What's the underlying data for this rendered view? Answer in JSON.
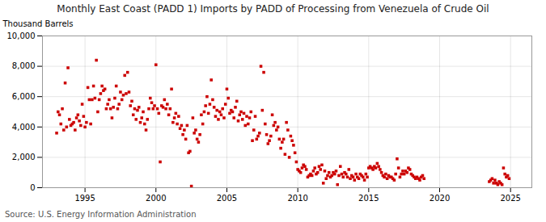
{
  "chart_data": {
    "type": "scatter",
    "title": "Monthly East Coast (PADD 1) Imports by PADD of Processing from Venezuela of Crude Oil",
    "ylabel": "Thousand Barrels",
    "source": "Source: U.S. Energy Information Administration",
    "color": "#cc0000",
    "marker": "square",
    "grid": true,
    "xlim": [
      1992.0,
      2026.5
    ],
    "xticks": [
      1995,
      2000,
      2005,
      2010,
      2015,
      2020,
      2025
    ],
    "ylim": [
      0,
      10000
    ],
    "yticks": [
      0,
      {
        "value": 2000,
        "label": "2,000"
      },
      {
        "value": 4000,
        "label": "4,000"
      },
      {
        "value": 6000,
        "label": "6,000"
      },
      {
        "value": 8000,
        "label": "8,000"
      },
      {
        "value": 10000,
        "label": "10,000"
      }
    ],
    "x": [
      1993.0,
      1993.1,
      1993.2,
      1993.3,
      1993.4,
      1993.5,
      1993.6,
      1993.7,
      1993.8,
      1993.9,
      1994.0,
      1994.1,
      1994.2,
      1994.3,
      1994.4,
      1994.5,
      1994.6,
      1994.7,
      1994.8,
      1994.9,
      1995.0,
      1995.1,
      1995.2,
      1995.3,
      1995.4,
      1995.5,
      1995.6,
      1995.7,
      1995.8,
      1995.9,
      1996.0,
      1996.1,
      1996.2,
      1996.3,
      1996.4,
      1996.5,
      1996.6,
      1996.7,
      1996.8,
      1996.9,
      1997.0,
      1997.1,
      1997.2,
      1997.3,
      1997.4,
      1997.5,
      1997.6,
      1997.7,
      1997.8,
      1997.9,
      1998.0,
      1998.1,
      1998.2,
      1998.3,
      1998.4,
      1998.5,
      1998.6,
      1998.7,
      1998.8,
      1998.9,
      1999.0,
      1999.1,
      1999.2,
      1999.3,
      1999.4,
      1999.5,
      1999.6,
      1999.7,
      1999.8,
      1999.9,
      2000.0,
      2000.1,
      2000.2,
      2000.3,
      2000.4,
      2000.5,
      2000.6,
      2000.7,
      2000.8,
      2000.9,
      2001.0,
      2001.1,
      2001.2,
      2001.3,
      2001.4,
      2001.5,
      2001.6,
      2001.7,
      2001.8,
      2001.9,
      2002.0,
      2002.1,
      2002.2,
      2002.3,
      2002.4,
      2002.5,
      2002.6,
      2002.7,
      2002.8,
      2002.9,
      2003.0,
      2003.1,
      2003.2,
      2003.3,
      2003.4,
      2003.5,
      2003.6,
      2003.7,
      2003.8,
      2003.9,
      2004.0,
      2004.1,
      2004.2,
      2004.3,
      2004.4,
      2004.5,
      2004.6,
      2004.7,
      2004.8,
      2004.9,
      2005.0,
      2005.1,
      2005.2,
      2005.3,
      2005.4,
      2005.5,
      2005.6,
      2005.7,
      2005.8,
      2005.9,
      2006.0,
      2006.1,
      2006.2,
      2006.3,
      2006.4,
      2006.5,
      2006.6,
      2006.7,
      2006.8,
      2006.9,
      2007.0,
      2007.1,
      2007.2,
      2007.3,
      2007.4,
      2007.5,
      2007.6,
      2007.7,
      2007.8,
      2007.9,
      2008.0,
      2008.1,
      2008.2,
      2008.3,
      2008.4,
      2008.5,
      2008.6,
      2008.7,
      2008.8,
      2008.9,
      2009.0,
      2009.1,
      2009.2,
      2009.3,
      2009.4,
      2009.5,
      2009.6,
      2009.7,
      2009.8,
      2009.9,
      2010.0,
      2010.1,
      2010.2,
      2010.3,
      2010.4,
      2010.5,
      2010.6,
      2010.7,
      2010.8,
      2010.9,
      2011.0,
      2011.1,
      2011.2,
      2011.3,
      2011.4,
      2011.5,
      2011.6,
      2011.7,
      2011.8,
      2011.9,
      2012.0,
      2012.1,
      2012.2,
      2012.3,
      2012.4,
      2012.5,
      2012.6,
      2012.7,
      2012.8,
      2012.9,
      2013.0,
      2013.1,
      2013.2,
      2013.3,
      2013.4,
      2013.5,
      2013.6,
      2013.7,
      2013.8,
      2013.9,
      2014.0,
      2014.1,
      2014.2,
      2014.3,
      2014.4,
      2014.5,
      2014.6,
      2014.7,
      2014.8,
      2014.9,
      2015.0,
      2015.1,
      2015.2,
      2015.3,
      2015.4,
      2015.5,
      2015.6,
      2015.7,
      2015.8,
      2015.9,
      2016.0,
      2016.1,
      2016.2,
      2016.3,
      2016.4,
      2016.5,
      2016.6,
      2016.7,
      2016.8,
      2016.9,
      2017.0,
      2017.1,
      2017.2,
      2017.3,
      2017.4,
      2017.5,
      2017.6,
      2017.7,
      2017.8,
      2017.9,
      2018.0,
      2018.1,
      2018.2,
      2018.3,
      2018.4,
      2018.5,
      2018.6,
      2018.7,
      2018.8,
      2018.9,
      2023.5,
      2023.6,
      2023.7,
      2023.8,
      2023.9,
      2024.0,
      2024.1,
      2024.2,
      2024.3,
      2024.4,
      2024.5,
      2024.6,
      2024.7,
      2024.8,
      2024.9
    ],
    "values": [
      3600,
      5000,
      4800,
      4200,
      5200,
      3800,
      6900,
      4000,
      7900,
      4500,
      4100,
      4200,
      4300,
      3800,
      4600,
      4800,
      4400,
      4100,
      5500,
      4700,
      4000,
      4300,
      6600,
      5800,
      4200,
      5800,
      6700,
      5900,
      8400,
      5000,
      5800,
      6200,
      6700,
      6400,
      6500,
      5200,
      5500,
      5800,
      5200,
      4600,
      5300,
      5900,
      6700,
      5200,
      5500,
      6300,
      5800,
      6100,
      7400,
      6200,
      7600,
      6300,
      5400,
      5700,
      4800,
      5200,
      4500,
      5100,
      5300,
      4300,
      4600,
      5000,
      4200,
      3800,
      4500,
      5200,
      5900,
      5600,
      5200,
      5400,
      8100,
      5200,
      4900,
      1700,
      5400,
      5300,
      5800,
      5200,
      5500,
      4800,
      5200,
      6500,
      4300,
      4600,
      4900,
      4200,
      4700,
      3900,
      4100,
      3500,
      3800,
      3200,
      4100,
      2300,
      2400,
      100,
      4600,
      3600,
      3800,
      3200,
      3000,
      3500,
      4800,
      4200,
      5000,
      5400,
      6000,
      4900,
      5500,
      7100,
      5800,
      5300,
      4700,
      5100,
      4500,
      5000,
      4800,
      5200,
      4600,
      5500,
      6500,
      5900,
      4900,
      5100,
      5000,
      4600,
      5300,
      5700,
      4400,
      4800,
      5000,
      4500,
      4900,
      4100,
      4700,
      4200,
      4600,
      5000,
      3100,
      3800,
      4700,
      3200,
      3400,
      3600,
      8000,
      5100,
      7600,
      4200,
      3500,
      2900,
      3100,
      3400,
      4800,
      4100,
      4300,
      3800,
      4000,
      3200,
      2600,
      3000,
      3200,
      2200,
      4300,
      3800,
      2000,
      3400,
      3100,
      2800,
      2300,
      1700,
      1200,
      1100,
      1000,
      1300,
      1500,
      1400,
      1200,
      700,
      800,
      900,
      800,
      1100,
      1300,
      900,
      1000,
      1400,
      1200,
      1500,
      300,
      1100,
      600,
      800,
      1000,
      700,
      800,
      1000,
      900,
      1100,
      200,
      800,
      1400,
      900,
      700,
      1000,
      900,
      700,
      1200,
      600,
      800,
      700,
      500,
      900,
      700,
      600,
      900,
      800,
      700,
      500,
      900,
      700,
      1300,
      1400,
      1300,
      1200,
      1400,
      1300,
      1600,
      1400,
      1200,
      1000,
      800,
      700,
      900,
      600,
      800,
      700,
      700,
      600,
      500,
      900,
      1900,
      1300,
      700,
      900,
      1100,
      900,
      1100,
      1000,
      1300,
      1200,
      900,
      800,
      700,
      600,
      700,
      600,
      500,
      700,
      800,
      600,
      400,
      500,
      600,
      300,
      500,
      300,
      200,
      400,
      300,
      200,
      1300,
      900,
      700,
      800,
      600
    ]
  }
}
